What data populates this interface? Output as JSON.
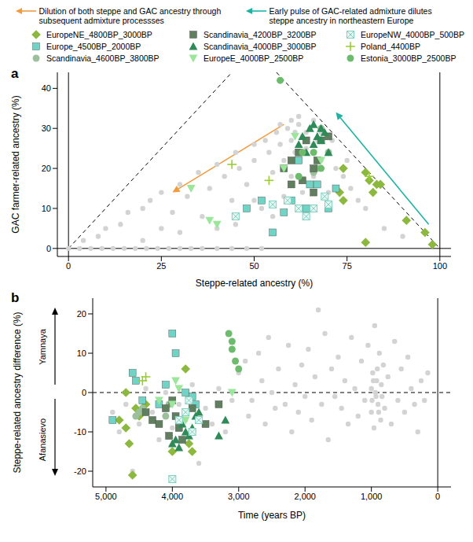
{
  "chart_data": [
    {
      "type": "scatter",
      "title": "a",
      "x_label": "Steppe-related ancestry (%)",
      "y_label": "GAC farmer-related ancestry (%)",
      "annotations": [
        "Dilution of both steppe and GAC ancestry through subsequent admixture processses",
        "Early pulse of GAC-related admixture dilutes steppe ancestry in northeastern Europe"
      ],
      "xlim": [
        -3,
        103
      ],
      "xticks": [
        0,
        25,
        50,
        75,
        100
      ],
      "ylim": [
        -2,
        44
      ],
      "yticks": [
        0,
        10,
        20,
        30,
        40
      ],
      "grid": false,
      "series": [
        {
          "color": "#d3d3d3",
          "marker": "circle",
          "x": [
            0,
            3,
            6,
            9,
            12,
            15,
            18,
            21,
            24,
            27,
            30,
            33,
            36,
            40,
            44,
            48,
            52,
            4,
            8,
            10,
            14,
            16,
            20,
            22,
            25,
            28,
            30,
            32,
            35,
            36,
            38,
            40,
            42,
            44,
            45,
            46,
            48,
            50,
            50,
            52,
            53,
            54,
            55,
            56,
            57,
            58,
            59,
            60,
            61,
            62,
            63,
            64,
            65,
            66,
            67,
            68,
            60,
            63,
            66,
            70,
            72,
            74,
            76,
            78,
            80,
            70,
            58,
            55,
            40,
            30,
            20,
            62,
            64,
            61,
            68,
            57,
            60,
            66,
            71,
            75,
            85,
            90,
            45,
            50,
            25
          ],
          "values": [
            0,
            0,
            0,
            0,
            0,
            0,
            0,
            0,
            0,
            0,
            0,
            0,
            0,
            0,
            0,
            0,
            0,
            2,
            3,
            5,
            6,
            9,
            10,
            12,
            14,
            9,
            16,
            13,
            19,
            8,
            15,
            21,
            18,
            12,
            24,
            20,
            16,
            26,
            22,
            10,
            27,
            24,
            19,
            29,
            26,
            22,
            30,
            27,
            24,
            31,
            28,
            25,
            30,
            32,
            27,
            22,
            18,
            14,
            18,
            24,
            20,
            18,
            15,
            12,
            10,
            14,
            13,
            8,
            5,
            4,
            2,
            33,
            29,
            29,
            29,
            31,
            32,
            26,
            27,
            22,
            5,
            3,
            6,
            12,
            5
          ]
        },
        {
          "name": "EuropeNE_4800BP_3000BP",
          "color": "#8cb83e",
          "marker": "diamond",
          "x": [
            96,
            98,
            91,
            81,
            82,
            83,
            84,
            80,
            74,
            73,
            74,
            80
          ],
          "values": [
            4,
            1,
            7,
            17,
            14,
            16,
            16,
            19,
            20,
            14,
            12,
            1.5
          ]
        },
        {
          "name": "Europe_4500BP_2000BP",
          "color": "#6fd3c6",
          "marker": "square",
          "x": [
            55,
            58,
            60,
            52,
            65,
            67,
            62,
            72,
            48,
            64,
            70
          ],
          "values": [
            4,
            9,
            12,
            12,
            16,
            16,
            22,
            15,
            10,
            10,
            10
          ]
        },
        {
          "name": "Scandinavia_4600BP_3800BP",
          "color": "#9cbf9c",
          "marker": "circle",
          "x": [
            68,
            67,
            66,
            70
          ],
          "values": [
            30,
            20,
            19,
            24
          ]
        },
        {
          "name": "Scandinavia_4200BP_3200BP",
          "color": "#5f7f5f",
          "marker": "square",
          "x": [
            58,
            60,
            62,
            63,
            66,
            66,
            68,
            64,
            60,
            70,
            67
          ],
          "values": [
            20,
            22,
            24,
            17,
            14,
            20,
            27,
            27,
            16,
            28,
            22
          ]
        },
        {
          "name": "Scandinavia_4000BP_3000BP",
          "color": "#2e8b57",
          "marker": "triangle",
          "x": [
            63,
            65,
            66,
            67,
            68,
            69,
            70,
            66,
            64,
            62,
            68
          ],
          "values": [
            28,
            30,
            31,
            28,
            30,
            29,
            24,
            26,
            24,
            26,
            27
          ]
        },
        {
          "name": "EuropeE_4000BP_2500BP",
          "color": "#9ae69a",
          "marker": "triangle-down",
          "x": [
            33,
            38,
            40,
            58,
            68,
            61
          ],
          "values": [
            15,
            7,
            6,
            20,
            22,
            28
          ]
        },
        {
          "name": "EuropeNW_4000BP_500BP",
          "color": "#7fd1c1",
          "marker": "square-x",
          "x": [
            45,
            55,
            59,
            62,
            66,
            69,
            70,
            64
          ],
          "values": [
            8,
            11,
            12,
            10,
            10,
            13,
            11,
            8
          ]
        },
        {
          "name": "Poland_4400BP",
          "color": "#9acd32",
          "marker": "plus",
          "x": [
            44,
            54,
            81
          ],
          "values": [
            21,
            17,
            18
          ]
        },
        {
          "name": "Estonia_3000BP_2500BP",
          "color": "#6dbb6d",
          "marker": "circle",
          "x": [
            57,
            63,
            66,
            62,
            68
          ],
          "values": [
            42,
            24,
            24,
            18,
            20
          ]
        }
      ]
    },
    {
      "type": "scatter",
      "title": "b",
      "x_label": "Time (years BP)",
      "y_label": "Steppe-related ancestry difference (%)",
      "annotations": [
        "Yamnaya",
        "Afanasievo"
      ],
      "xlim": [
        5200,
        -200
      ],
      "xticks": [
        {
          "value": 5000,
          "label": "5,000"
        },
        {
          "value": 4000,
          "label": "4,000"
        },
        {
          "value": 3000,
          "label": "3,000"
        },
        {
          "value": 2000,
          "label": "2,000"
        },
        {
          "value": 1000,
          "label": "1,000"
        },
        0
      ],
      "ylim": [
        -24,
        24
      ],
      "yticks": [
        -20,
        -10,
        0,
        10,
        20
      ],
      "grid": false,
      "series": [
        {
          "color": "#d3d3d3",
          "marker": "circle",
          "x": [
            4900,
            4800,
            4700,
            4600,
            4500,
            4400,
            4300,
            4200,
            4100,
            4000,
            3900,
            3800,
            3700,
            3600,
            3500,
            3400,
            3300,
            3200,
            3100,
            3000,
            2900,
            2850,
            2800,
            2700,
            2650,
            2600,
            2550,
            2500,
            2450,
            2400,
            2300,
            2250,
            2200,
            2150,
            2100,
            2050,
            2000,
            1950,
            1900,
            1850,
            1800,
            1750,
            1700,
            1650,
            1600,
            1550,
            1500,
            1450,
            1400,
            1350,
            1300,
            1250,
            1200,
            1150,
            1100,
            1050,
            1000,
            980,
            960,
            950,
            940,
            920,
            900,
            880,
            860,
            850,
            840,
            820,
            800,
            750,
            700,
            650,
            600,
            550,
            500,
            450,
            400,
            350,
            300,
            250,
            200,
            150,
            1000,
            990,
            970,
            930,
            910,
            890
          ],
          "values": [
            -5,
            -10,
            -3,
            -20,
            -8,
            1,
            -5,
            -12,
            0,
            -9,
            -3,
            -7,
            2,
            -18,
            -4,
            -8,
            1,
            -10,
            -2,
            5,
            8,
            -6,
            -2,
            10,
            3,
            -8,
            14,
            0,
            -4,
            6,
            -3,
            12,
            -10,
            2,
            -5,
            7,
            -1,
            11,
            -7,
            4,
            21,
            -3,
            15,
            -12,
            6,
            -1,
            9,
            -4,
            3,
            -8,
            14,
            1,
            -6,
            8,
            -2,
            12,
            -5,
            5,
            -9,
            17,
            0,
            3,
            -3,
            10,
            -7,
            2,
            -1,
            7,
            -4,
            4,
            -8,
            13,
            -2,
            6,
            -5,
            9,
            1,
            -3,
            -10,
            3,
            -2,
            5,
            1,
            -2,
            3,
            -1,
            6,
            -5
          ]
        },
        {
          "name": "EuropeNE_4800BP_3000BP",
          "color": "#8cb83e",
          "marker": "diamond",
          "x": [
            4800,
            4700,
            4650,
            4600,
            4550,
            4500,
            4400,
            4000,
            3800,
            3750,
            3700,
            4700
          ],
          "values": [
            -7,
            -9,
            -13,
            -21,
            -4,
            -6,
            -3,
            -15,
            6,
            -13,
            -15,
            0
          ]
        },
        {
          "name": "Europe_4500BP_2000BP",
          "color": "#6fd3c6",
          "marker": "square",
          "x": [
            4900,
            4600,
            4550,
            4450,
            4200,
            4000,
            3950,
            3800,
            3700,
            4100,
            3650
          ],
          "values": [
            -7,
            5,
            3,
            -2,
            -3,
            15,
            10,
            0,
            -1,
            2,
            -3
          ]
        },
        {
          "name": "Scandinavia_4600BP_3800BP",
          "color": "#9cbf9c",
          "marker": "circle",
          "x": [
            4550,
            4500,
            4450,
            4100,
            4050
          ],
          "values": [
            -6,
            -5,
            -4,
            -6,
            -3
          ]
        },
        {
          "name": "Scandinavia_4200BP_3200BP",
          "color": "#5f7f5f",
          "marker": "square",
          "x": [
            4400,
            4300,
            4200,
            4100,
            4050,
            4000,
            3950,
            3900,
            3850,
            3700,
            3500,
            3300
          ],
          "values": [
            -5,
            -7,
            -8,
            -4,
            -11,
            -2,
            -6,
            -9,
            -12,
            -4,
            -8,
            -3
          ]
        },
        {
          "name": "Scandinavia_4000BP_3000BP",
          "color": "#2e8b57",
          "marker": "triangle",
          "x": [
            4000,
            3950,
            3900,
            3850,
            3800,
            3750,
            3700,
            3650,
            3600,
            3300,
            3200
          ],
          "values": [
            -13,
            -12,
            -14,
            -8,
            -10,
            -11,
            -9,
            -6,
            -5,
            -11,
            -7
          ]
        },
        {
          "name": "EuropeE_4000BP_2500BP",
          "color": "#9ae69a",
          "marker": "triangle-down",
          "x": [
            4200,
            4000,
            3950,
            3900,
            3800,
            3100
          ],
          "values": [
            -2,
            -3,
            3,
            1,
            -7,
            0
          ]
        },
        {
          "name": "EuropeNW_4000BP_500BP",
          "color": "#7fd1c1",
          "marker": "square-x",
          "x": [
            4000,
            3900,
            3800,
            3750,
            3600,
            3700
          ],
          "values": [
            -22,
            -7,
            -5,
            -2,
            -7,
            -10
          ]
        },
        {
          "name": "Poland_4400BP",
          "color": "#9acd32",
          "marker": "plus",
          "x": [
            4400,
            4450
          ],
          "values": [
            4,
            3
          ]
        },
        {
          "name": "Estonia_3000BP_2500BP",
          "color": "#6dbb6d",
          "marker": "circle",
          "x": [
            3150,
            3100,
            3050,
            3000,
            3100
          ],
          "values": [
            15,
            11,
            8,
            6,
            13
          ]
        }
      ]
    }
  ]
}
